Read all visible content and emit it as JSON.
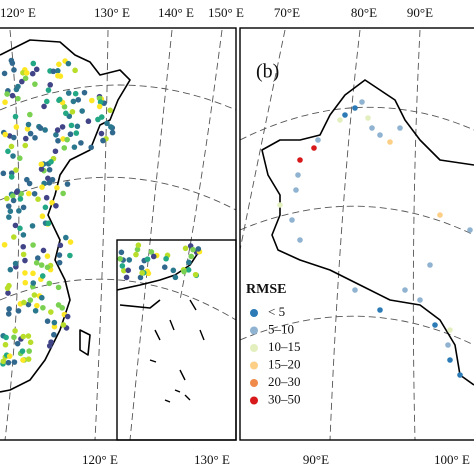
{
  "top_left_labels": [
    "120° E",
    "130° E",
    "140° E",
    "150° E"
  ],
  "top_right_labels": [
    "70°E",
    "80°E",
    "90°E"
  ],
  "bottom_left_labels": [
    "120° E",
    "130° E"
  ],
  "bottom_right_labels": [
    "90°E",
    "100° E"
  ],
  "panel_label": "(b)",
  "legend": {
    "title": "RMSE",
    "items": [
      {
        "label": "< 5",
        "color": "#2c7bb6"
      },
      {
        "label": "5–10",
        "color": "#8fb3d0"
      },
      {
        "label": "10–15",
        "color": "#e3efbe"
      },
      {
        "label": "15–20",
        "color": "#fdcf86"
      },
      {
        "label": "20–30",
        "color": "#f08a4b"
      },
      {
        "label": "30–50",
        "color": "#d7191c"
      }
    ]
  }
}
